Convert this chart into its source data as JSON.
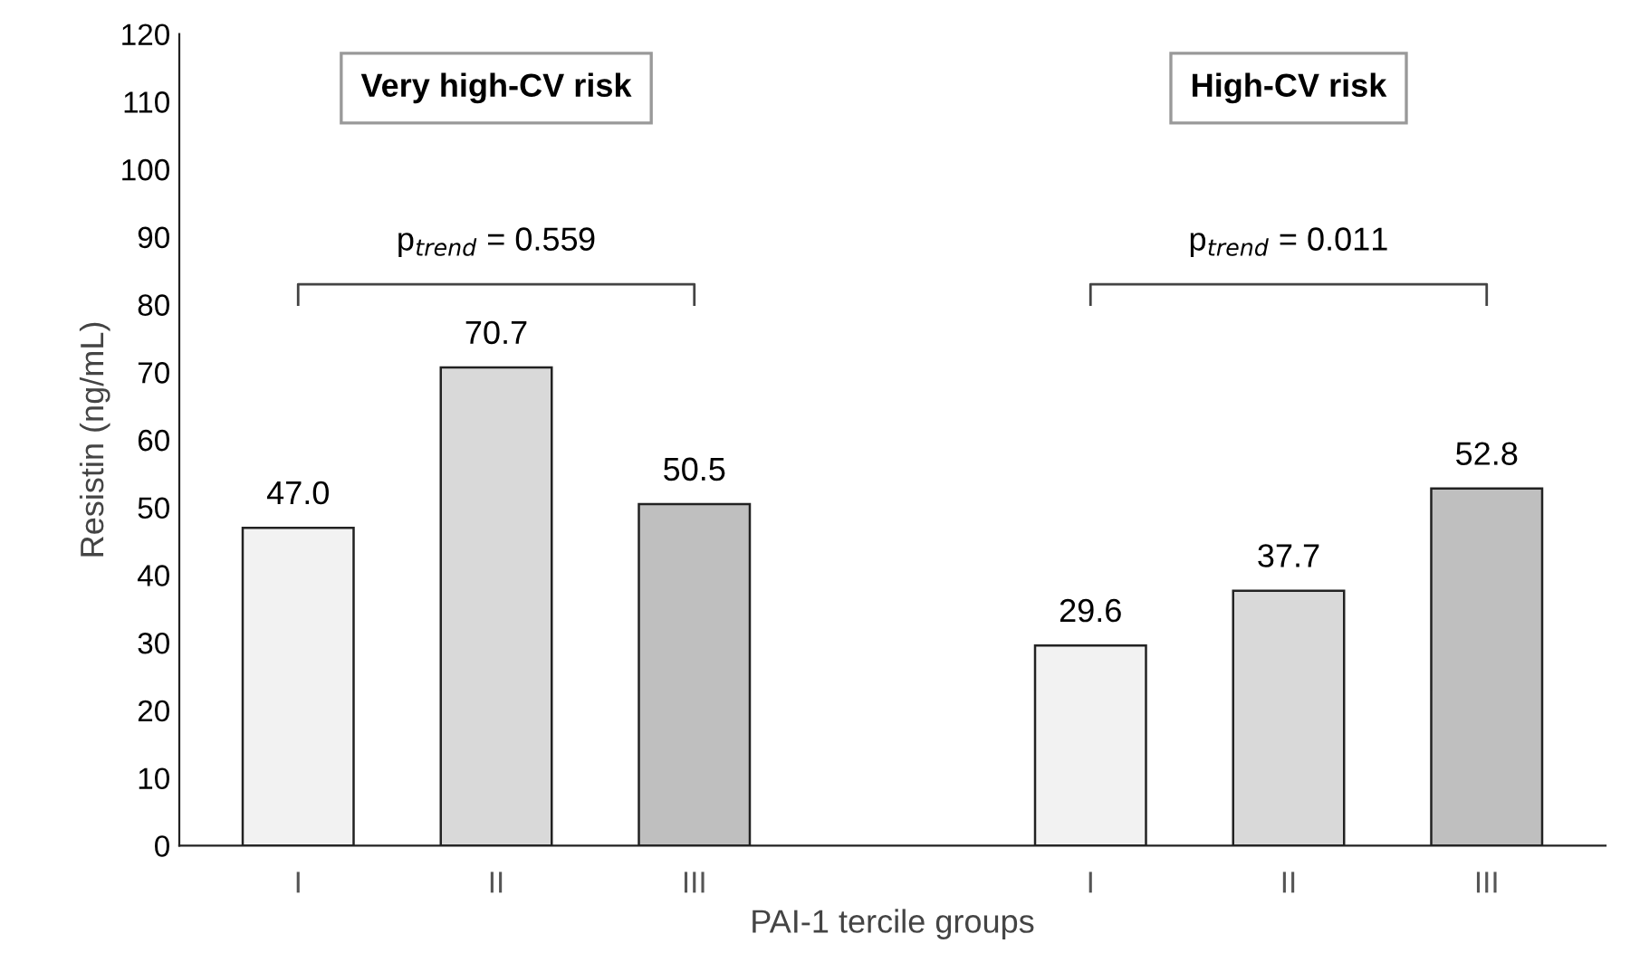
{
  "chart_data": {
    "type": "bar",
    "xlabel": "PAI-1 tercile groups",
    "ylabel": "Resistin (ng/mL)",
    "categories": [
      "I",
      "II",
      "III",
      null,
      "I",
      "II",
      "III"
    ],
    "values": [
      47.0,
      70.7,
      50.5,
      null,
      29.6,
      37.7,
      52.8
    ],
    "colors": [
      "#f2f2f2",
      "#d9d9d9",
      "#bfbfbf",
      "#ffffff",
      "#f2f2f2",
      "#d9d9d9",
      "#bfbfbf"
    ],
    "ylim": [
      0,
      120
    ],
    "yticks": [
      0,
      10,
      20,
      30,
      40,
      50,
      60,
      70,
      80,
      90,
      100,
      110,
      120
    ],
    "grid": false,
    "legend": false,
    "value_labels": [
      "47.0",
      "70.7",
      "50.5",
      null,
      "29.6",
      "37.7",
      "52.8"
    ],
    "annotations": [
      "Very high-CV risk",
      "High-CV risk",
      "p$_{trend}$ = 0.559",
      "p$_{trend}$ = 0.011"
    ]
  }
}
